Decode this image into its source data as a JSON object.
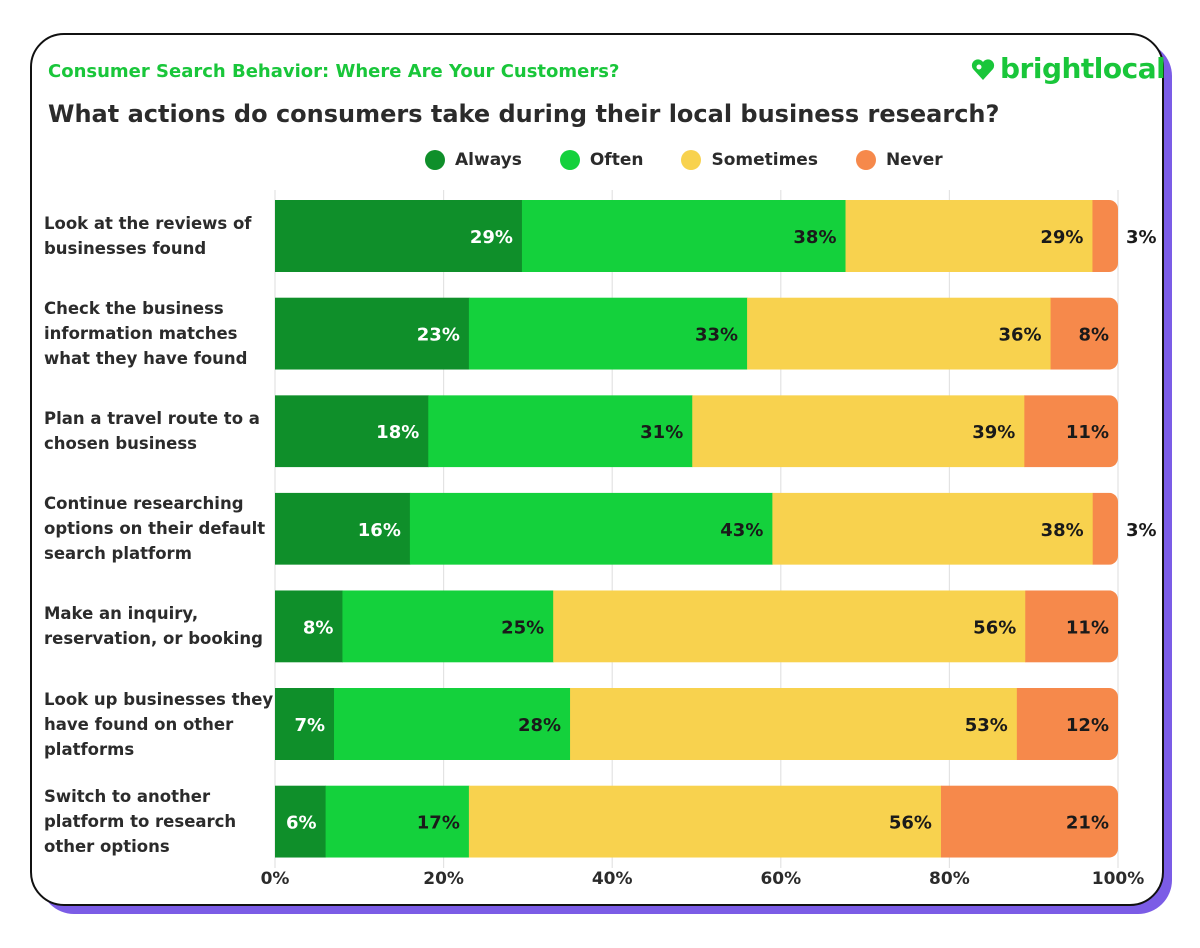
{
  "header": {
    "subtitle": "Consumer Search Behavior: Where Are Your Customers?",
    "title": "What actions do consumers take during their local business research?",
    "logo": "brightlocal"
  },
  "chart_data": {
    "type": "bar",
    "orientation": "horizontal-stacked",
    "title": "What actions do consumers take during their local business research?",
    "categories": [
      "Look at the reviews of businesses found",
      "Check the business information matches what they have found",
      "Plan a travel route to a chosen business",
      "Continue researching options on their default search platform",
      "Make an inquiry, reservation, or booking",
      "Look up businesses they have found on other platforms",
      "Switch to another platform to research other options"
    ],
    "series": [
      {
        "name": "Always",
        "color": "#0f8f2a",
        "values": [
          29,
          23,
          18,
          16,
          8,
          7,
          6
        ]
      },
      {
        "name": "Often",
        "color": "#14d13c",
        "values": [
          38,
          33,
          31,
          43,
          25,
          28,
          17
        ]
      },
      {
        "name": "Sometimes",
        "color": "#f8d24e",
        "values": [
          29,
          36,
          39,
          38,
          56,
          53,
          56
        ]
      },
      {
        "name": "Never",
        "color": "#f6894b",
        "values": [
          3,
          8,
          11,
          3,
          11,
          12,
          21
        ]
      }
    ],
    "xlim": [
      0,
      100
    ],
    "xticks": [
      "0%",
      "20%",
      "40%",
      "60%",
      "80%",
      "100%"
    ],
    "grid": true,
    "legend": "top"
  }
}
